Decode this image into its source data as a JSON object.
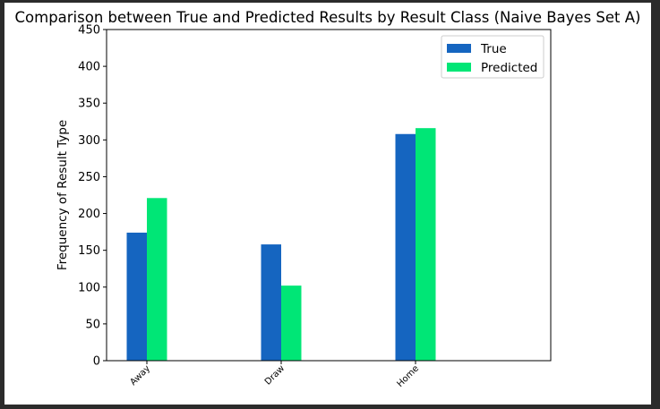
{
  "chart_data": {
    "type": "bar",
    "title": "Comparison between True and Predicted Results by Result Class (Naive Bayes Set A)",
    "xlabel": "",
    "ylabel": "Frequency of Result Type",
    "categories": [
      "Away",
      "Draw",
      "Home"
    ],
    "series": [
      {
        "name": "True",
        "values": [
          174,
          158,
          308
        ],
        "color": "#1565c0"
      },
      {
        "name": "Predicted",
        "values": [
          221,
          102,
          316
        ],
        "color": "#00e676"
      }
    ],
    "ylim": [
      0,
      450
    ],
    "yticks": [
      0,
      50,
      100,
      150,
      200,
      250,
      300,
      350,
      400,
      450
    ],
    "grid": false,
    "legend_position": "top-right"
  }
}
